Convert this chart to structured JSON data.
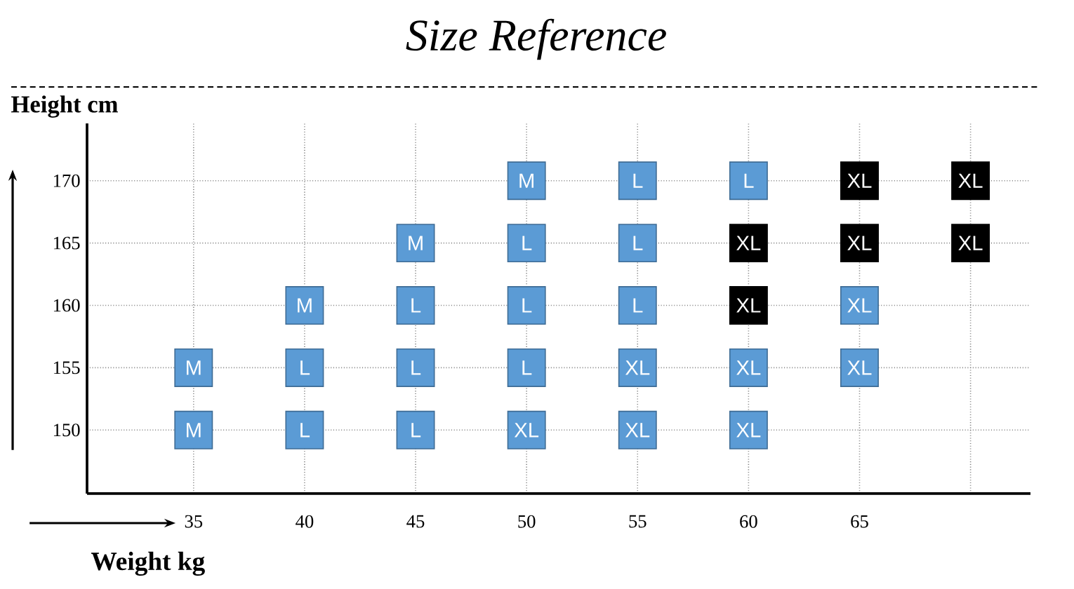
{
  "chart_data": {
    "type": "scatter",
    "title": "Size Reference",
    "xlabel": "Weight kg",
    "ylabel": "Height cm",
    "xlim": [
      30.2,
      72.7
    ],
    "ylim": [
      144.9,
      174.6
    ],
    "xticks": [
      35,
      40,
      45,
      50,
      55,
      60,
      65,
      {
        "value": 70,
        "label": null
      }
    ],
    "yticks": [
      150,
      155,
      160,
      165,
      170
    ],
    "marker": "square",
    "grid": true,
    "series": [
      {
        "color": "#5b9bd5",
        "x": [
          50,
          55,
          60,
          45,
          50,
          55,
          40,
          45,
          50,
          55,
          65,
          35,
          40,
          45,
          50,
          55,
          60,
          65,
          35,
          40,
          45,
          50,
          55,
          60
        ],
        "values": [
          170,
          170,
          170,
          165,
          165,
          165,
          160,
          160,
          160,
          160,
          160,
          155,
          155,
          155,
          155,
          155,
          155,
          155,
          150,
          150,
          150,
          150,
          150,
          150
        ],
        "value_labels": [
          "M",
          "L",
          "L",
          "M",
          "L",
          "L",
          "M",
          "L",
          "L",
          "L",
          "XL",
          "M",
          "L",
          "L",
          "L",
          "XL",
          "XL",
          "XL",
          "M",
          "L",
          "L",
          "XL",
          "XL",
          "XL"
        ]
      },
      {
        "color": "#000000",
        "x": [
          65,
          70,
          60,
          65,
          70,
          60
        ],
        "values": [
          170,
          170,
          165,
          165,
          165,
          160
        ],
        "value_labels": [
          "XL",
          "XL",
          "XL",
          "XL",
          "XL",
          "XL"
        ]
      }
    ]
  }
}
